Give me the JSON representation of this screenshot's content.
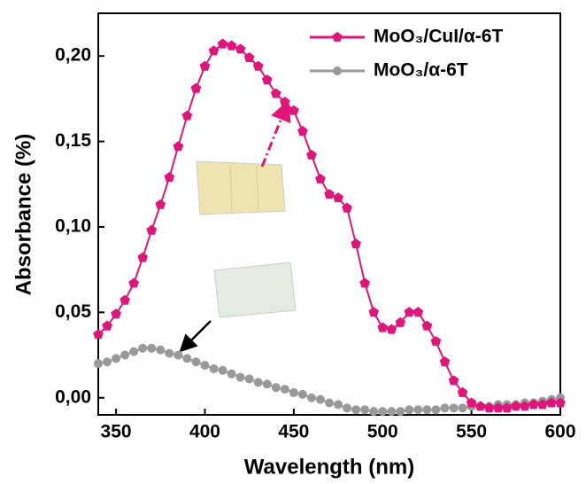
{
  "chart_data": {
    "type": "line",
    "x_label": "Wavelength (nm)",
    "y_label": "Absorbance (%)",
    "x": [
      340,
      345,
      350,
      355,
      360,
      365,
      370,
      375,
      380,
      385,
      390,
      395,
      400,
      405,
      410,
      415,
      420,
      425,
      430,
      435,
      440,
      445,
      450,
      455,
      460,
      465,
      470,
      475,
      480,
      485,
      490,
      495,
      500,
      505,
      510,
      515,
      520,
      525,
      530,
      535,
      540,
      545,
      550,
      555,
      560,
      565,
      570,
      575,
      580,
      585,
      590,
      595,
      600
    ],
    "series": [
      {
        "name": "MoO₃/CuI/α-6T",
        "color": "#e0157a",
        "marker": "pentagon",
        "values": [
          0.037,
          0.042,
          0.049,
          0.057,
          0.067,
          0.082,
          0.098,
          0.113,
          0.129,
          0.147,
          0.165,
          0.181,
          0.194,
          0.203,
          0.207,
          0.206,
          0.204,
          0.199,
          0.194,
          0.186,
          0.178,
          0.173,
          0.168,
          0.156,
          0.142,
          0.128,
          0.119,
          0.117,
          0.111,
          0.09,
          0.067,
          0.05,
          0.041,
          0.04,
          0.044,
          0.05,
          0.05,
          0.042,
          0.033,
          0.021,
          0.01,
          0.003,
          -0.003,
          -0.005,
          -0.006,
          -0.006,
          -0.006,
          -0.005,
          -0.005,
          -0.004,
          -0.004,
          -0.003,
          -0.003
        ]
      },
      {
        "name": "MoO₃/α-6T",
        "color": "#999999",
        "marker": "circle",
        "values": [
          0.02,
          0.021,
          0.023,
          0.025,
          0.027,
          0.029,
          0.029,
          0.028,
          0.026,
          0.025,
          0.023,
          0.021,
          0.019,
          0.017,
          0.016,
          0.014,
          0.012,
          0.011,
          0.009,
          0.008,
          0.006,
          0.005,
          0.003,
          0.002,
          0.0,
          -0.001,
          -0.003,
          -0.004,
          -0.006,
          -0.007,
          -0.007,
          -0.008,
          -0.008,
          -0.008,
          -0.008,
          -0.007,
          -0.007,
          -0.007,
          -0.007,
          -0.006,
          -0.006,
          -0.006,
          -0.005,
          -0.005,
          -0.005,
          -0.004,
          -0.004,
          -0.004,
          -0.003,
          -0.003,
          -0.002,
          -0.001,
          0.0
        ]
      }
    ],
    "xlim": [
      340,
      600
    ],
    "xticks": [
      350,
      400,
      450,
      500,
      550,
      600
    ],
    "ylim": [
      -0.01,
      0.225
    ],
    "yticks": [
      {
        "value": 0,
        "label": "0,00"
      },
      {
        "value": 0.05,
        "label": "0,05"
      },
      {
        "value": 0.1,
        "label": "0,10"
      },
      {
        "value": 0.15,
        "label": "0,15"
      },
      {
        "value": 0.2,
        "label": "0,20"
      }
    ],
    "legend": "upper right",
    "grid": false
  }
}
